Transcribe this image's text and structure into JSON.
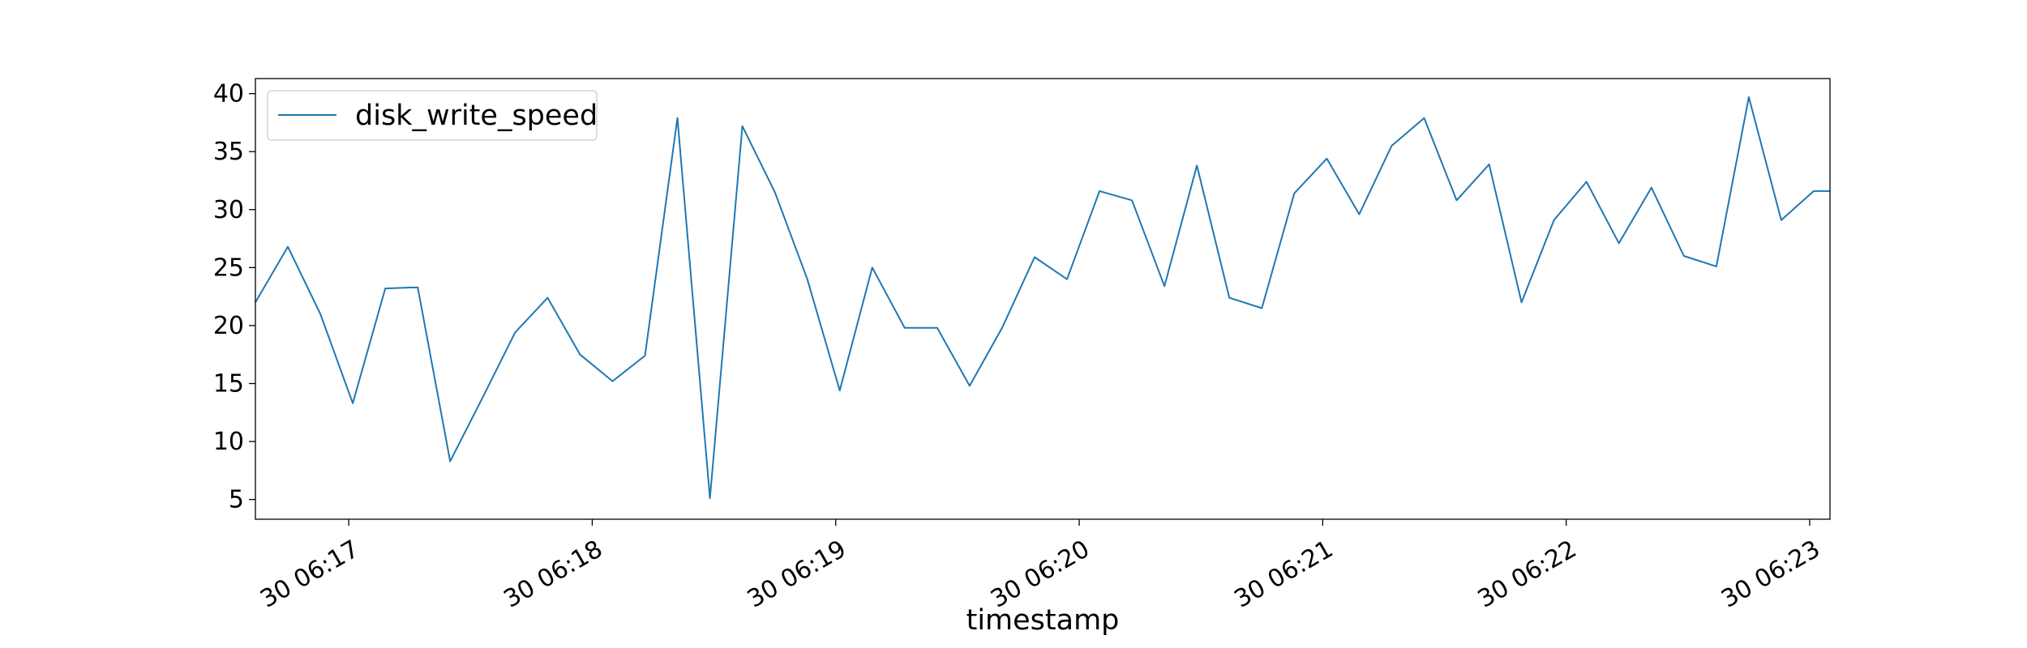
{
  "chart_data": {
    "type": "line",
    "title": "",
    "xlabel": "timestamp",
    "ylabel": "",
    "x_ticks": [
      "30 06:17",
      "30 06:18",
      "30 06:19",
      "30 06:20",
      "30 06:21",
      "30 06:22",
      "30 06:23"
    ],
    "y_ticks": [
      5,
      10,
      15,
      20,
      25,
      30,
      35,
      40
    ],
    "xlim": [
      "30 06:16:37",
      "30 06:23:05"
    ],
    "ylim": [
      3.3,
      41.3
    ],
    "grid": false,
    "legend": "upper-left",
    "series": [
      {
        "name": "disk_write_speed",
        "color": "#1f77b4",
        "x": [
          "30 06:16:37",
          "30 06:16:45",
          "30 06:16:53",
          "30 06:17:01",
          "30 06:17:09",
          "30 06:17:17",
          "30 06:17:25",
          "30 06:17:33",
          "30 06:17:41",
          "30 06:17:49",
          "30 06:17:57",
          "30 06:18:05",
          "30 06:18:13",
          "30 06:18:21",
          "30 06:18:29",
          "30 06:18:37",
          "30 06:18:45",
          "30 06:18:53",
          "30 06:19:01",
          "30 06:19:09",
          "30 06:19:17",
          "30 06:19:25",
          "30 06:19:33",
          "30 06:19:41",
          "30 06:19:49",
          "30 06:19:57",
          "30 06:20:05",
          "30 06:20:13",
          "30 06:20:21",
          "30 06:20:29",
          "30 06:20:37",
          "30 06:20:45",
          "30 06:20:53",
          "30 06:21:01",
          "30 06:21:09",
          "30 06:21:17",
          "30 06:21:25",
          "30 06:21:33",
          "30 06:21:41",
          "30 06:21:49",
          "30 06:21:57",
          "30 06:22:05",
          "30 06:22:13",
          "30 06:22:21",
          "30 06:22:29",
          "30 06:22:37",
          "30 06:22:45",
          "30 06:22:53",
          "30 06:23:01",
          "30 06:23:05"
        ],
        "y": [
          22.0,
          26.8,
          21.0,
          13.3,
          23.2,
          23.3,
          8.3,
          13.8,
          19.4,
          22.4,
          17.5,
          15.2,
          17.4,
          37.9,
          5.1,
          37.2,
          31.5,
          24.0,
          14.4,
          25.0,
          19.8,
          19.8,
          14.8,
          19.8,
          25.9,
          24.0,
          31.6,
          30.8,
          23.4,
          33.8,
          22.4,
          21.5,
          31.4,
          34.4,
          29.6,
          35.5,
          37.9,
          30.8,
          33.9,
          22.0,
          29.1,
          32.4,
          27.1,
          31.9,
          26.0,
          25.1,
          39.7,
          29.1,
          31.6,
          31.6
        ]
      }
    ]
  }
}
